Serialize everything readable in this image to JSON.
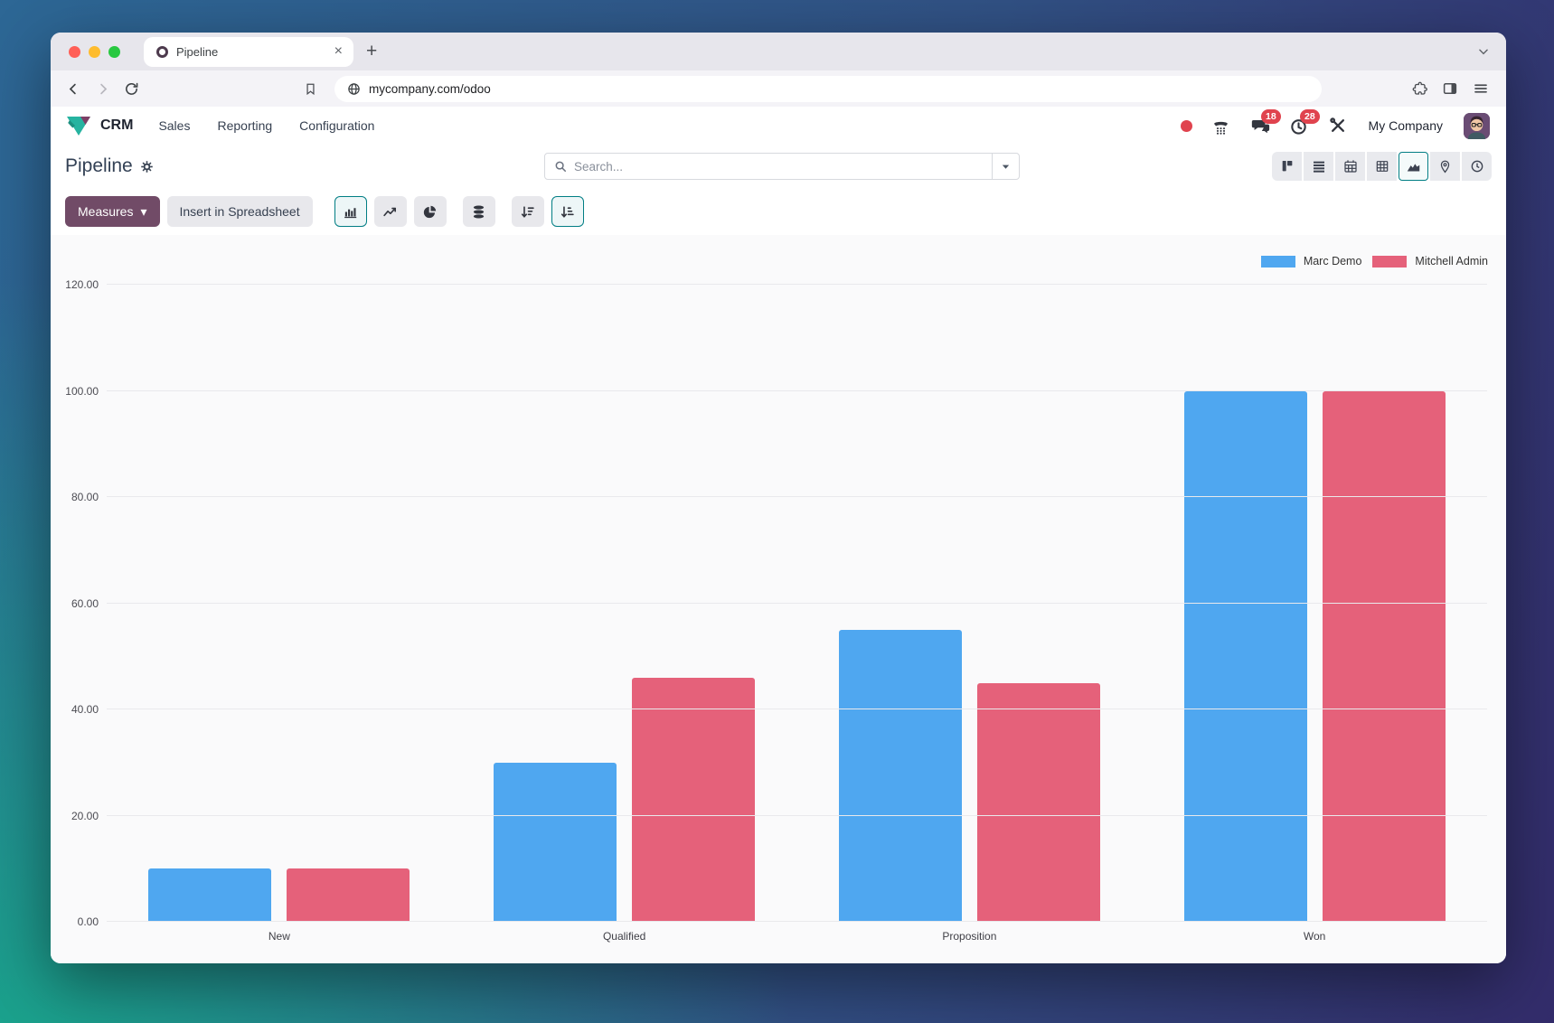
{
  "browser": {
    "tab_title": "Pipeline",
    "url": "mycompany.com/odoo"
  },
  "glyphs": {
    "close": "×",
    "new_tab": "+",
    "caret_down": "▾"
  },
  "nav": {
    "app_name": "CRM",
    "menus": [
      "Sales",
      "Reporting",
      "Configuration"
    ],
    "systray": {
      "chat_badge": "18",
      "activity_badge": "28",
      "company": "My Company"
    }
  },
  "control_panel": {
    "title": "Pipeline",
    "search_placeholder": "Search...",
    "measures_label": "Measures",
    "spreadsheet_label": "Insert in Spreadsheet"
  },
  "theme": {
    "accent": "#017e84",
    "measures_bg": "#714b67",
    "badge_red": "#e0434e"
  },
  "chart_data": {
    "type": "bar",
    "categories": [
      "New",
      "Qualified",
      "Proposition",
      "Won"
    ],
    "series": [
      {
        "name": "Marc Demo",
        "color": "#4FA7F0",
        "values": [
          10,
          30,
          55,
          100
        ]
      },
      {
        "name": "Mitchell Admin",
        "color": "#E5617A",
        "values": [
          10,
          46,
          45,
          100
        ]
      }
    ],
    "ylim": [
      0,
      120
    ],
    "ytick_step": 20,
    "ytick_decimals": 2,
    "grid": true,
    "legend_position": "top-right",
    "xlabel": "",
    "ylabel": ""
  }
}
